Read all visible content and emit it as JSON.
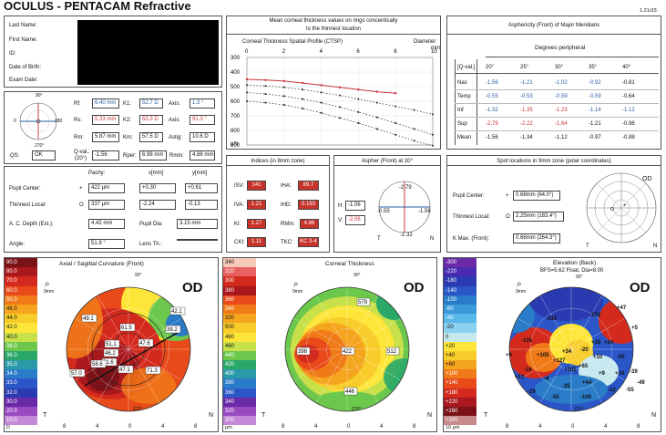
{
  "header": {
    "title": "OCULUS - PENTACAM Refractive",
    "version": "1.21r33"
  },
  "patient": {
    "fields": [
      "Last Name:",
      "First Name:",
      "ID:",
      "Date of Birth:",
      "Exam Date:"
    ]
  },
  "keratometry": {
    "rf_label": "Rf:",
    "rf": "6.40 mm",
    "k1_label": "K1:",
    "k1": "52.7 D",
    "axis1_label": "Axis:",
    "axis1": "1.3 °",
    "rs_label": "Rs:",
    "rs": "5.33 mm",
    "k2_label": "K2:",
    "k2": "63.3 D",
    "axis2_label": "Axis:",
    "axis2": "91.3 °",
    "rm_label": "Rm:",
    "rm": "5.87 mm",
    "km_label": "Km:",
    "km": "57.5 D",
    "astig_label": "Astig:",
    "astig": "10.6 D",
    "qs_label": "QS:",
    "qs": "OK",
    "qval_label": "Q-val.:",
    "qval_sub": "(20°)",
    "qval": "-1.56",
    "rper_label": "Rper:",
    "rper": "6.98 mm",
    "rmin_label": "Rmin:",
    "rmin": "4.86 mm",
    "dial_top": "90°",
    "dial_bottom": "270°",
    "dial_left": "0",
    "dial_right": "180"
  },
  "pachy": {
    "col_pachy": "Pachy:",
    "col_x": "x[mm]",
    "col_y": "y[mm]",
    "pupil_label": "Pupil Center:",
    "pupil_sym": "+",
    "pupil_pachy": "422 µm",
    "pupil_x": "+0.30",
    "pupil_y": "+0.61",
    "thin_label": "Thinnest Local:",
    "thin_sym": "O",
    "thin_pachy": "337 µm",
    "thin_x": "-2.24",
    "thin_y": "-0.13",
    "acd_label": "A. C. Depth (Ext.):",
    "acd": "4.42 mm",
    "pupil_dia_label": "Pupil Dia:",
    "pupil_dia": "3.15 mm",
    "angle_label": "Angle:",
    "angle": "51.8 °",
    "lens_label": "Lens Th.:",
    "lens": ""
  },
  "thickness_graph": {
    "title1": "Mean corneal thickness values on rings concentically",
    "title2": "to the thinnest location",
    "ctsp": "Corneal Thickness Spatial Profile (CTSP)",
    "diameter_label": "Diameter",
    "mm": "mm",
    "um": "µm",
    "x_ticks": [
      "0",
      "2",
      "4",
      "6",
      "8",
      "10"
    ],
    "y_ticks": [
      "300",
      "400",
      "500",
      "600",
      "700",
      "800",
      "900"
    ]
  },
  "chart_data": {
    "type": "line",
    "title": "Corneal Thickness Spatial Profile (CTSP)",
    "xlabel": "Diameter mm",
    "ylabel": "µm",
    "xlim": [
      0,
      10
    ],
    "ylim": [
      300,
      900
    ],
    "series": [
      {
        "x": [
          0,
          1,
          2,
          3,
          4,
          5,
          6,
          7,
          8
        ],
        "values": [
          450,
          455,
          462,
          475,
          490,
          505,
          520,
          535,
          545
        ]
      },
      {
        "x": [
          0,
          1,
          2,
          3,
          4,
          5,
          6,
          7,
          8,
          9,
          10
        ],
        "values": [
          490,
          495,
          505,
          520,
          540,
          560,
          585,
          610,
          635,
          660,
          690
        ]
      },
      {
        "x": [
          0,
          1,
          2,
          3,
          4,
          5,
          6,
          7,
          8,
          9,
          10
        ],
        "values": [
          540,
          550,
          565,
          585,
          610,
          640,
          675,
          710,
          750,
          790,
          830
        ]
      },
      {
        "x": [
          0,
          1,
          2,
          3,
          4,
          5,
          6,
          7,
          8,
          9,
          10
        ],
        "values": [
          600,
          610,
          625,
          650,
          680,
          715,
          750,
          790,
          830,
          870,
          905
        ]
      }
    ]
  },
  "asphericity": {
    "title": "Asphericity (Front) of Major Meridians",
    "deg_label": "Degrees peripheral",
    "qval_label": "[Q-val.]",
    "cols": [
      "20°",
      "25°",
      "30°",
      "35°",
      "40°"
    ],
    "rows": [
      {
        "label": "Nas",
        "vals": [
          "-1.56",
          "-1.21",
          "-1.02",
          "-0.92",
          "-0.81"
        ]
      },
      {
        "label": "Temp",
        "vals": [
          "-0.55",
          "-0.53",
          "-0.59",
          "-0.59",
          "-0.64"
        ]
      },
      {
        "label": "Inf",
        "vals": [
          "-1.32",
          "-1.35",
          "-1.23",
          "-1.14",
          "-1.12"
        ]
      },
      {
        "label": "Sup",
        "vals": [
          "-2.79",
          "-2.22",
          "-1.64",
          "-1.21",
          "-0.96"
        ]
      },
      {
        "label": "Mean",
        "vals": [
          "-1.56",
          "-1.34",
          "-1.12",
          "-0.97",
          "-0.88"
        ]
      }
    ],
    "colors": [
      [
        "blue",
        "blue",
        "blue",
        "blue",
        "dark"
      ],
      [
        "blue",
        "blue",
        "blue",
        "blue",
        "dark"
      ],
      [
        "blue",
        "red",
        "red",
        "blue",
        "blue"
      ],
      [
        "red",
        "red",
        "red",
        "dark",
        "dark"
      ],
      [
        "dark",
        "dark",
        "dark",
        "dark",
        "dark"
      ]
    ]
  },
  "indices": {
    "title": "Indices (in 8mm zone)",
    "isv_label": "ISV:",
    "isv": "141",
    "iha_label": "IHA:",
    "iha": "89.7",
    "iva_label": "IVA:",
    "iva": "1.21",
    "ihd_label": "IHD:",
    "ihd": "0.193",
    "ki_label": "KI:",
    "ki": "1.27",
    "rmin_label": "RMin:",
    "rmin": "4.86",
    "cki_label": "CKI:",
    "cki": "1.11",
    "tkc_label": "TKC:",
    "tkc": "KC 3-4"
  },
  "aspher": {
    "title": "Aspher (Front) at 20°",
    "h_label": "H:",
    "h": "-1.06",
    "v_label": "V:",
    "v": "-2.06",
    "top": "-2.79",
    "left": "-0.55",
    "right": "-1.56",
    "bottom": "-1.32",
    "t": "T",
    "n": "N"
  },
  "spot": {
    "title": "Spot locations in 9mm zone (polar coordinates)",
    "pupil_label": "Pupil Center:",
    "pupil_sym": "+",
    "pupil": "0.68mm (64.0°)",
    "thin_label": "Thinnest Local:",
    "thin_sym": "O",
    "thin": "2.25mm (183.4°)",
    "kmax_label": "K Max. (Front):",
    "kmax": "0.66mm (264.3°)",
    "od": "OD",
    "t": "T",
    "n": "N"
  },
  "axial_map": {
    "title": "Axial / Sagittal Curvature (Front)",
    "od": "OD",
    "zoom": "9mm",
    "t": "T",
    "n": "N",
    "deg_top": "90°",
    "deg_bottom": "270°",
    "deg_left": "0°",
    "deg_right": "180°",
    "x_ticks": [
      "8",
      "4",
      "0",
      "4",
      "8"
    ],
    "scale": [
      "90.0",
      "80.0",
      "70.0",
      "60.0",
      "50.0",
      "46.0",
      "44.0",
      "42.0",
      "40.0",
      "38.0",
      "36.0",
      "35.0",
      "34.0",
      "33.0",
      "32.0",
      "30.0",
      "20.0",
      "10.0"
    ],
    "scale_colors": [
      "#7a1218",
      "#a8181c",
      "#d42a1e",
      "#e84a1a",
      "#f07a18",
      "#f5a41e",
      "#f8cc2a",
      "#fde638",
      "#c8e04a",
      "#6cc84c",
      "#2aa86a",
      "#2a9aa8",
      "#2a7cc8",
      "#2a56c8",
      "#2a3ab0",
      "#6a2aa8",
      "#9a4ac0",
      "#c48ad8"
    ],
    "foot1": "D",
    "foot2": "Curvature",
    "foot3": "Abs",
    "labels": [
      "49.1",
      "61.5",
      "47.6",
      "39.2",
      "42.1",
      "51.1",
      "46.2",
      "51.6",
      "47.1",
      "57.0",
      "58.6",
      "71.3"
    ]
  },
  "thickness_map": {
    "title": "Corneal Thickness",
    "od": "OD",
    "zoom": "9mm",
    "t": "T",
    "n": "N",
    "deg_top": "90°",
    "deg_bottom": "270°",
    "deg_left": "0°",
    "deg_right": "180°",
    "x_ticks": [
      "8",
      "4",
      "0",
      "4",
      "8"
    ],
    "scale": [
      "340",
      "320",
      "300",
      "380",
      "360",
      "340",
      "320",
      "500",
      "480",
      "460",
      "440",
      "420",
      "400",
      "380",
      "360",
      "340",
      "320",
      "300"
    ],
    "scale_colors": [
      "#f8c8b8",
      "#e86060",
      "#d42a1e",
      "#a8181c",
      "#e84a1a",
      "#f07a18",
      "#f5a41e",
      "#f8cc2a",
      "#fde638",
      "#c8e04a",
      "#6cc84c",
      "#2aa86a",
      "#2a9aa8",
      "#2a7cc8",
      "#2a56c8",
      "#6a2aa8",
      "#9a4ac0",
      "#c48ad8"
    ],
    "foot1": "µm",
    "foot2": "Pachy",
    "foot3": "Abs",
    "values": [
      "579",
      "398",
      "422",
      "512",
      "446"
    ]
  },
  "elevation_map": {
    "title": "Elevation (Back)",
    "subtitle": "BFS=5.62 Float, Dia=8.00",
    "od": "OD",
    "zoom": "9mm",
    "t": "T",
    "n": "N",
    "deg_top": "90°",
    "deg_bottom": "270°",
    "deg_left": "0°",
    "deg_right": "180°",
    "x_ticks": [
      "8",
      "4",
      "0",
      "4",
      "8"
    ],
    "scale": [
      "-300",
      "-220",
      "-180",
      "-140",
      "-100",
      "-60",
      "-40",
      "-20",
      "0",
      "+20",
      "+40",
      "+60",
      "+100",
      "+140",
      "+180",
      "+220",
      "+260",
      "+300"
    ],
    "scale_colors": [
      "#6a2aa8",
      "#4a2ab0",
      "#2a3ab0",
      "#2a56c8",
      "#2a7cc8",
      "#3a9ad8",
      "#5ab8e8",
      "#8ad0f0",
      "#c8e8f0",
      "#fde638",
      "#f8cc2a",
      "#f5a41e",
      "#f07a18",
      "#e84a1a",
      "#d42a1e",
      "#a8181c",
      "#7a1218",
      "#c88a8a"
    ],
    "foot1": "10 µm",
    "foot2": "Elevation",
    "foot3": "Height",
    "values": [
      "-136",
      "-155",
      "+47",
      "+5",
      "-105",
      "+105",
      "+127",
      "+34",
      "-20",
      "+38",
      "+24",
      "+101",
      "+65",
      "+10",
      "-55",
      "-4",
      "-35",
      "+44",
      "+9",
      "+24",
      "-39",
      "-16",
      "-29",
      "-55",
      "-100",
      "-22",
      "-55",
      "-49",
      "+9",
      "+13"
    ]
  }
}
